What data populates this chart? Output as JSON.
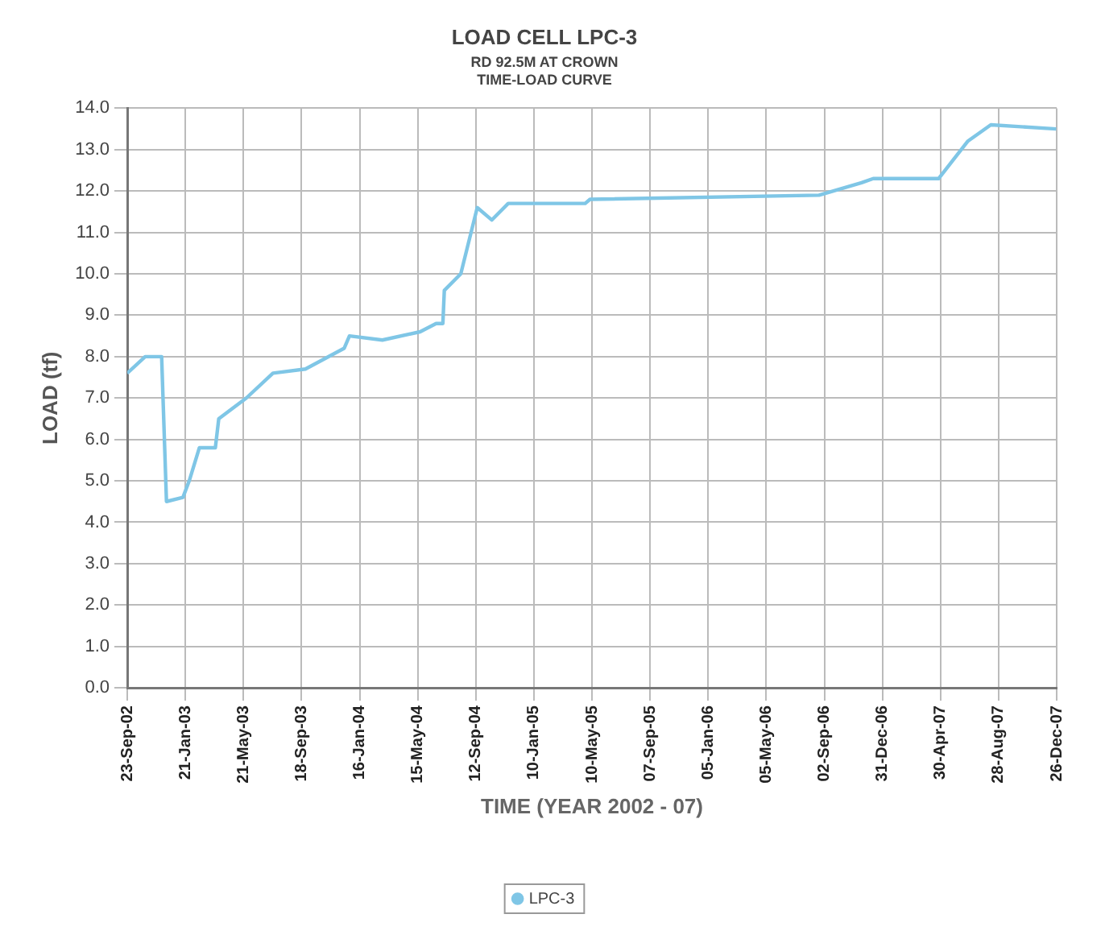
{
  "chart_data": {
    "type": "line",
    "title": "LOAD CELL LPC-3",
    "subtitle": "RD 92.5M AT CROWN\nTIME-LOAD CURVE",
    "xlabel": "TIME (YEAR 2002 - 07)",
    "ylabel": "LOAD (tf)",
    "x": [
      "2002-09-23",
      "2002-10-30",
      "2002-12-03",
      "2002-12-13",
      "2003-01-16",
      "2003-01-29",
      "2003-02-19",
      "2003-03-24",
      "2003-03-31",
      "2003-05-27",
      "2003-07-21",
      "2003-09-26",
      "2003-12-15",
      "2003-12-26",
      "2004-03-03",
      "2004-05-20",
      "2004-06-22",
      "2004-07-06",
      "2004-07-09",
      "2004-08-12",
      "2004-09-15",
      "2004-10-15",
      "2004-11-18",
      "2005-04-26",
      "2005-05-06",
      "2006-08-22",
      "2006-11-18",
      "2006-12-12",
      "2007-04-26",
      "2007-06-25",
      "2007-08-12",
      "2007-12-25"
    ],
    "series": [
      {
        "name": "LPC-3",
        "color": "#7fc6e6",
        "values": [
          7.6,
          8.0,
          8.0,
          4.5,
          4.6,
          5.0,
          5.8,
          5.8,
          6.5,
          7.0,
          7.6,
          7.7,
          8.2,
          8.5,
          8.4,
          8.6,
          8.8,
          8.8,
          9.6,
          10.0,
          11.6,
          11.3,
          11.7,
          11.7,
          11.8,
          11.9,
          12.2,
          12.3,
          12.3,
          13.2,
          13.6,
          13.5
        ]
      }
    ],
    "xlim": [
      "2002-09-23",
      "2007-12-26"
    ],
    "xticks": [
      {
        "value": "2002-09-23",
        "label": "23-Sep-02"
      },
      {
        "value": "2003-01-21",
        "label": "21-Jan-03"
      },
      {
        "value": "2003-05-21",
        "label": "21-May-03"
      },
      {
        "value": "2003-09-18",
        "label": "18-Sep-03"
      },
      {
        "value": "2004-01-16",
        "label": "16-Jan-04"
      },
      {
        "value": "2004-05-15",
        "label": "15-May-04"
      },
      {
        "value": "2004-09-12",
        "label": "12-Sep-04"
      },
      {
        "value": "2005-01-10",
        "label": "10-Jan-05"
      },
      {
        "value": "2005-05-10",
        "label": "10-May-05"
      },
      {
        "value": "2005-09-07",
        "label": "07-Sep-05"
      },
      {
        "value": "2006-01-05",
        "label": "05-Jan-06"
      },
      {
        "value": "2006-05-05",
        "label": "05-May-06"
      },
      {
        "value": "2006-09-02",
        "label": "02-Sep-06"
      },
      {
        "value": "2006-12-31",
        "label": "31-Dec-06"
      },
      {
        "value": "2007-04-30",
        "label": "30-Apr-07"
      },
      {
        "value": "2007-08-28",
        "label": "28-Aug-07"
      },
      {
        "value": "2007-12-26",
        "label": "26-Dec-07"
      }
    ],
    "ylim": [
      0,
      14
    ],
    "yticks": [
      {
        "value": 0,
        "label": "0.0"
      },
      {
        "value": 1,
        "label": "1.0"
      },
      {
        "value": 2,
        "label": "2.0"
      },
      {
        "value": 3,
        "label": "3.0"
      },
      {
        "value": 4,
        "label": "4.0"
      },
      {
        "value": 5,
        "label": "5.0"
      },
      {
        "value": 6,
        "label": "6.0"
      },
      {
        "value": 7,
        "label": "7.0"
      },
      {
        "value": 8,
        "label": "8.0"
      },
      {
        "value": 9,
        "label": "9.0"
      },
      {
        "value": 10,
        "label": "10.0"
      },
      {
        "value": 11,
        "label": "11.0"
      },
      {
        "value": 12,
        "label": "12.0"
      },
      {
        "value": 13,
        "label": "13.0"
      },
      {
        "value": 14,
        "label": "14.0"
      }
    ],
    "grid": true,
    "legend": "bottom"
  }
}
